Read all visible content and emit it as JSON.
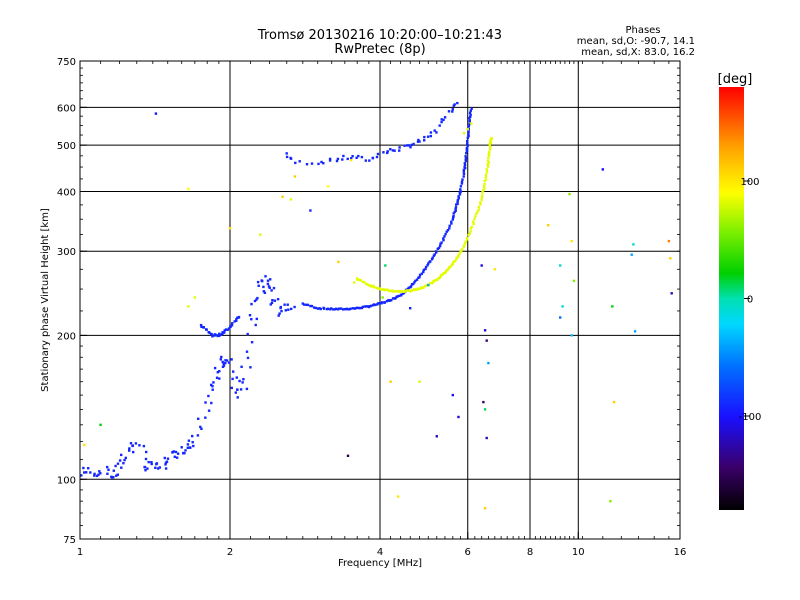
{
  "chart_data": {
    "type": "scatter",
    "title": "Tromsø 20130216 10:20:00–10:21:43",
    "subtitle": "RwPretec (8p)",
    "xlabel": "Frequency [MHz]",
    "ylabel": "Stationary phase Virtual Height [km]",
    "x_scale": "log",
    "y_scale": "log",
    "xlim": [
      1,
      16
    ],
    "ylim": [
      75,
      750
    ],
    "x_ticks": [
      1,
      2,
      4,
      6,
      8,
      10,
      16
    ],
    "x_tick_labels": [
      "1",
      "2",
      "4",
      "6",
      "8",
      "10",
      "16"
    ],
    "y_ticks": [
      75,
      100,
      200,
      300,
      400,
      500,
      600,
      750
    ],
    "y_tick_labels": [
      "75",
      "100",
      "200",
      "300",
      "400",
      "500",
      "600",
      "750"
    ],
    "grid_x": [
      2,
      4,
      6,
      8,
      10
    ],
    "grid_y": [
      100,
      200,
      300,
      400,
      500,
      600
    ],
    "grid": true,
    "phases": {
      "heading": "Phases",
      "line1": "mean, sd,O: -90.7, 14.1",
      "line2": "mean, sd,X: 83.0, 16.2"
    },
    "colorbar": {
      "label": "[deg]",
      "range": [
        -180,
        180
      ],
      "tick_values": [
        100,
        0,
        -100
      ],
      "tick_labels": [
        "100",
        "0",
        "-100"
      ],
      "colors": [
        "#000000",
        "#400060",
        "#1010ff",
        "#00b0ff",
        "#00e8e0",
        "#00d000",
        "#a0ff00",
        "#ffff00",
        "#ffa000",
        "#ff0000"
      ]
    },
    "o_trace": {
      "phase_deg": -90,
      "color": "#1a2be0",
      "low_layer": [
        [
          1.02,
          103
        ],
        [
          1.05,
          104
        ],
        [
          1.1,
          104
        ],
        [
          1.15,
          102
        ],
        [
          1.2,
          103
        ],
        [
          1.22,
          110
        ],
        [
          1.25,
          115
        ],
        [
          1.3,
          120
        ],
        [
          1.35,
          107
        ],
        [
          1.4,
          106
        ],
        [
          1.45,
          106
        ],
        [
          1.5,
          109
        ],
        [
          1.55,
          114
        ],
        [
          1.6,
          116
        ],
        [
          1.65,
          115
        ],
        [
          1.7,
          119
        ],
        [
          1.75,
          128
        ],
        [
          1.8,
          145
        ],
        [
          1.85,
          160
        ],
        [
          1.9,
          170
        ],
        [
          1.95,
          180
        ],
        [
          2.0,
          175
        ],
        [
          2.05,
          160
        ],
        [
          2.1,
          150
        ],
        [
          2.15,
          170
        ],
        [
          2.2,
          200
        ],
        [
          2.25,
          230
        ],
        [
          2.3,
          250
        ],
        [
          2.35,
          265
        ],
        [
          2.4,
          250
        ],
        [
          2.45,
          240
        ],
        [
          2.5,
          225
        ],
        [
          2.6,
          230
        ],
        [
          2.7,
          235
        ]
      ],
      "e_trace": [
        [
          1.75,
          210
        ],
        [
          1.8,
          205
        ],
        [
          1.85,
          200
        ],
        [
          1.9,
          200
        ],
        [
          1.95,
          203
        ],
        [
          2.0,
          208
        ],
        [
          2.05,
          215
        ],
        [
          2.1,
          220
        ]
      ],
      "f_trace": [
        [
          2.8,
          233
        ],
        [
          3.0,
          228
        ],
        [
          3.2,
          227
        ],
        [
          3.4,
          227
        ],
        [
          3.6,
          228
        ],
        [
          3.8,
          230
        ],
        [
          4.0,
          233
        ],
        [
          4.2,
          237
        ],
        [
          4.4,
          243
        ],
        [
          4.6,
          252
        ],
        [
          4.8,
          265
        ],
        [
          5.0,
          282
        ],
        [
          5.2,
          300
        ],
        [
          5.4,
          322
        ],
        [
          5.6,
          350
        ],
        [
          5.7,
          375
        ],
        [
          5.8,
          400
        ],
        [
          5.9,
          440
        ],
        [
          5.95,
          470
        ],
        [
          6.0,
          510
        ],
        [
          6.05,
          560
        ],
        [
          6.1,
          600
        ]
      ],
      "upper": [
        [
          2.6,
          480
        ],
        [
          2.7,
          460
        ],
        [
          3.0,
          460
        ],
        [
          3.2,
          465
        ],
        [
          3.4,
          470
        ],
        [
          3.6,
          472
        ],
        [
          3.8,
          465
        ],
        [
          4.0,
          480
        ],
        [
          4.2,
          487
        ],
        [
          4.4,
          492
        ],
        [
          4.6,
          500
        ],
        [
          4.8,
          508
        ],
        [
          5.0,
          517
        ],
        [
          5.2,
          540
        ],
        [
          5.4,
          570
        ],
        [
          5.6,
          600
        ],
        [
          5.8,
          620
        ]
      ]
    },
    "x_trace": {
      "phase_deg": 83,
      "color": "#e8f21a",
      "f_trace": [
        [
          3.6,
          263
        ],
        [
          3.8,
          255
        ],
        [
          4.0,
          250
        ],
        [
          4.2,
          248
        ],
        [
          4.4,
          247
        ],
        [
          4.6,
          248
        ],
        [
          4.8,
          250
        ],
        [
          5.0,
          255
        ],
        [
          5.2,
          262
        ],
        [
          5.4,
          270
        ],
        [
          5.6,
          282
        ],
        [
          5.8,
          298
        ],
        [
          6.0,
          320
        ],
        [
          6.2,
          350
        ],
        [
          6.4,
          385
        ],
        [
          6.5,
          420
        ],
        [
          6.6,
          460
        ],
        [
          6.65,
          500
        ],
        [
          6.7,
          520
        ]
      ],
      "scatter": [
        [
          1.7,
          240
        ],
        [
          1.65,
          230
        ],
        [
          3.6,
          262
        ],
        [
          3.55,
          258
        ],
        [
          5.9,
          530
        ],
        [
          6.0,
          540
        ],
        [
          6.1,
          555
        ],
        [
          2.3,
          325
        ],
        [
          2.65,
          385
        ]
      ]
    },
    "noise": [
      [
        1.42,
        582,
        -100
      ],
      [
        1.65,
        405,
        90
      ],
      [
        1.1,
        130,
        20
      ],
      [
        1.02,
        118,
        100
      ],
      [
        2.0,
        335,
        100
      ],
      [
        2.55,
        390,
        110
      ],
      [
        2.7,
        430,
        110
      ],
      [
        2.9,
        365,
        -90
      ],
      [
        3.15,
        410,
        90
      ],
      [
        3.3,
        285,
        110
      ],
      [
        3.45,
        112,
        -150
      ],
      [
        3.5,
        465,
        100
      ],
      [
        4.05,
        240,
        60
      ],
      [
        4.1,
        280,
        10
      ],
      [
        4.2,
        160,
        110
      ],
      [
        4.35,
        92,
        100
      ],
      [
        4.6,
        228,
        -90
      ],
      [
        4.8,
        160,
        80
      ],
      [
        5.0,
        255,
        -40
      ],
      [
        5.2,
        123,
        -120
      ],
      [
        5.6,
        150,
        -100
      ],
      [
        5.75,
        135,
        -110
      ],
      [
        6.4,
        280,
        -110
      ],
      [
        6.5,
        205,
        -110
      ],
      [
        6.55,
        195,
        -140
      ],
      [
        6.6,
        175,
        -40
      ],
      [
        6.45,
        145,
        -140
      ],
      [
        6.5,
        140,
        10
      ],
      [
        6.55,
        122,
        -120
      ],
      [
        6.5,
        87,
        110
      ],
      [
        6.8,
        275,
        100
      ],
      [
        8.7,
        340,
        110
      ],
      [
        9.2,
        280,
        -10
      ],
      [
        9.3,
        230,
        -10
      ],
      [
        9.2,
        218,
        -60
      ],
      [
        9.6,
        395,
        60
      ],
      [
        9.7,
        315,
        100
      ],
      [
        9.8,
        260,
        60
      ],
      [
        9.7,
        200,
        -30
      ],
      [
        11.2,
        445,
        -100
      ],
      [
        11.7,
        230,
        20
      ],
      [
        11.8,
        145,
        110
      ],
      [
        11.6,
        90,
        60
      ],
      [
        12.9,
        310,
        -10
      ],
      [
        12.8,
        295,
        -40
      ],
      [
        13.0,
        204,
        -40
      ],
      [
        15.2,
        315,
        140
      ],
      [
        15.3,
        290,
        110
      ],
      [
        15.4,
        245,
        -120
      ]
    ]
  }
}
